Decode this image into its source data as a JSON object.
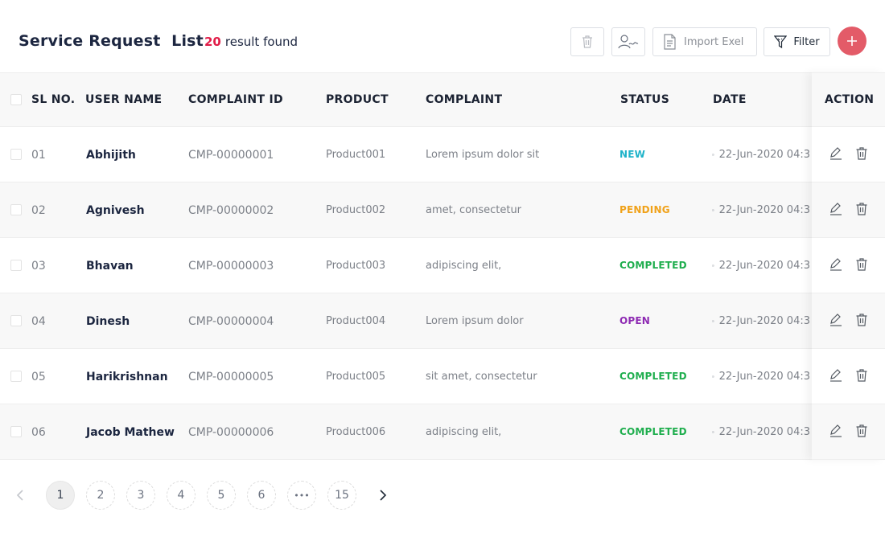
{
  "header": {
    "title": "Service Request  List",
    "result_count": "20",
    "result_text": "result found",
    "import_label": "Import Exel",
    "filter_label": "Filter"
  },
  "table": {
    "columns": [
      "SL NO.",
      "USER NAME",
      "COMPLAINT ID",
      "PRODUCT",
      "COMPLAINT",
      "STATUS",
      "DATE",
      "ACTION"
    ],
    "rows": [
      {
        "sl": "01",
        "user": "Abhijith",
        "cid": "CMP-00000001",
        "product": "Product001",
        "complaint": "Lorem ipsum dolor sit",
        "status": "NEW",
        "date": "22-Jun-2020 04:3"
      },
      {
        "sl": "02",
        "user": "Agnivesh",
        "cid": "CMP-00000002",
        "product": "Product002",
        "complaint": "amet, consectetur",
        "status": "PENDING",
        "date": "22-Jun-2020 04:3"
      },
      {
        "sl": "03",
        "user": "Bhavan",
        "cid": "CMP-00000003",
        "product": "Product003",
        "complaint": "adipiscing elit,",
        "status": "COMPLETED",
        "date": "22-Jun-2020 04:3"
      },
      {
        "sl": "04",
        "user": "Dinesh",
        "cid": "CMP-00000004",
        "product": "Product004",
        "complaint": "Lorem ipsum dolor",
        "status": "OPEN",
        "date": "22-Jun-2020 04:3"
      },
      {
        "sl": "05",
        "user": "Harikrishnan",
        "cid": "CMP-00000005",
        "product": "Product005",
        "complaint": "sit amet, consectetur",
        "status": "COMPLETED",
        "date": "22-Jun-2020 04:3"
      },
      {
        "sl": "06",
        "user": "Jacob Mathew",
        "cid": "CMP-00000006",
        "product": "Product006",
        "complaint": "adipiscing elit,",
        "status": "COMPLETED",
        "date": "22-Jun-2020 04:3"
      }
    ]
  },
  "status_colors": {
    "NEW": "#1fb3c9",
    "PENDING": "#f0a21a",
    "COMPLETED": "#1fae4e",
    "OPEN": "#8e2bb3"
  },
  "colors": {
    "accent": "#e35b68",
    "count": "#e11d48",
    "title": "#1c2640"
  },
  "pagination": {
    "pages": [
      "1",
      "2",
      "3",
      "4",
      "5",
      "6",
      "•••",
      "15"
    ],
    "active": "1"
  },
  "icons": {
    "toolbar": [
      "trash-icon",
      "assign-user-icon",
      "file-icon",
      "filter-icon",
      "plus-icon"
    ],
    "row_actions": [
      "edit-icon",
      "trash-icon"
    ],
    "date": "clock-icon",
    "pager": [
      "chevron-left-icon",
      "chevron-right-icon"
    ]
  }
}
